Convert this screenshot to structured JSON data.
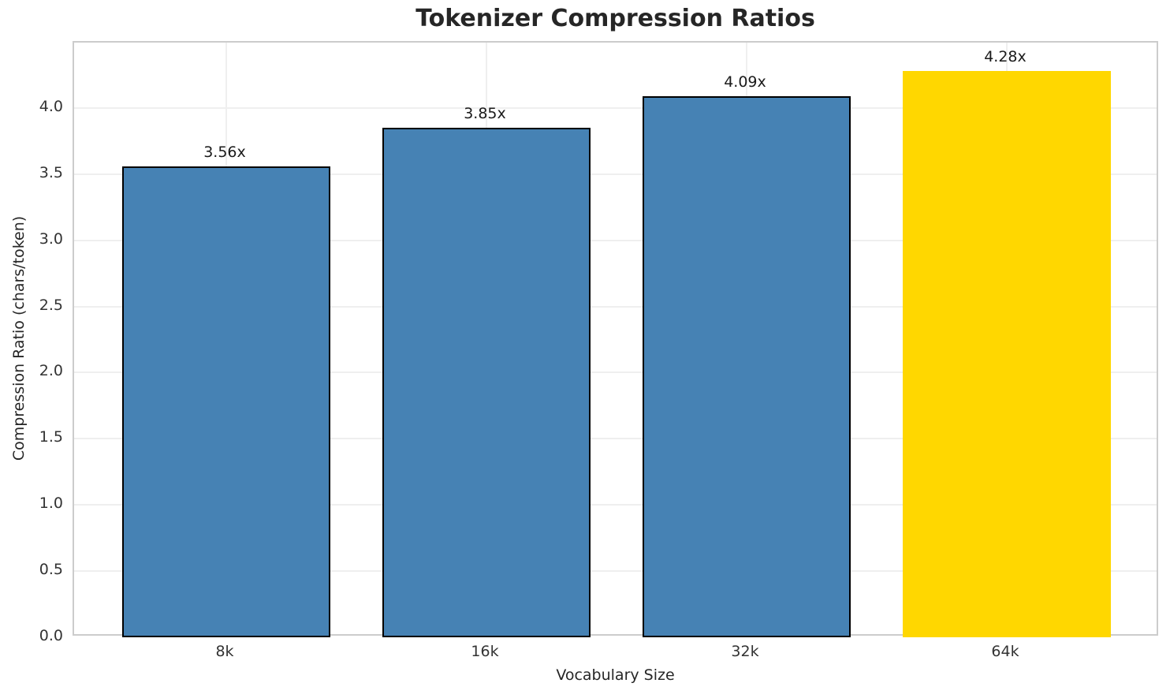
{
  "chart_data": {
    "type": "bar",
    "title": "Tokenizer Compression Ratios",
    "xlabel": "Vocabulary Size",
    "ylabel": "Compression Ratio (chars/token)",
    "categories": [
      "8k",
      "16k",
      "32k",
      "64k"
    ],
    "values": [
      3.56,
      3.85,
      4.09,
      4.28
    ],
    "bar_labels": [
      "3.56x",
      "3.85x",
      "4.09x",
      "4.28x"
    ],
    "bar_colors": [
      "#4682b4",
      "#4682b4",
      "#4682b4",
      "#ffd700"
    ],
    "bar_edge_colors": [
      "#000000",
      "#000000",
      "#000000",
      "none"
    ],
    "y_ticks": [
      0,
      0.5,
      1,
      1.5,
      2,
      2.5,
      3,
      3.5,
      4
    ],
    "y_tick_labels": [
      "0.0",
      "0.5",
      "1.0",
      "1.5",
      "2.0",
      "2.5",
      "3.0",
      "3.5",
      "4.0"
    ],
    "ylim": [
      0,
      4.494
    ],
    "grid": true,
    "legend": "none",
    "colors": {
      "bar_default": "#4682b4",
      "bar_highlight": "#ffd700",
      "bar_edge": "#000000",
      "grid": "#efefef",
      "spine": "#cccccc",
      "title_text": "#262626",
      "tick_text": "#333333"
    }
  }
}
